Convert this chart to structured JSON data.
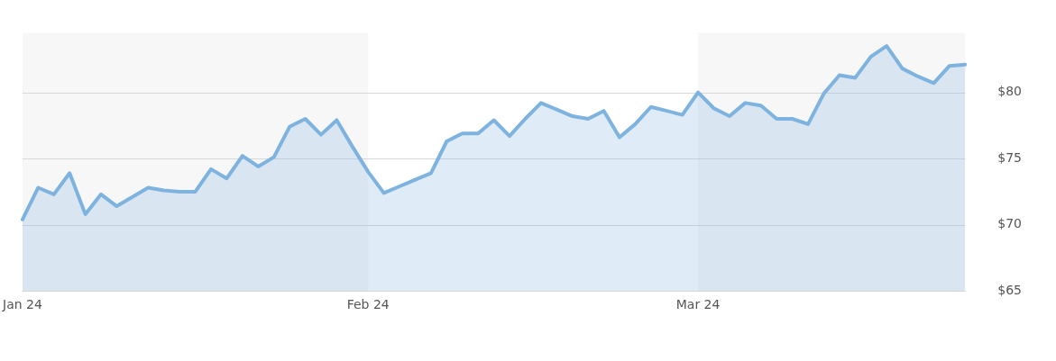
{
  "chart_data": {
    "type": "area",
    "categories": [
      "Jan 24",
      null,
      null,
      null,
      null,
      null,
      null,
      null,
      null,
      null,
      null,
      null,
      null,
      null,
      null,
      null,
      null,
      null,
      null,
      null,
      null,
      null,
      "Feb 24",
      null,
      null,
      null,
      null,
      null,
      null,
      null,
      null,
      null,
      null,
      null,
      null,
      null,
      null,
      null,
      null,
      null,
      null,
      null,
      null,
      "Mar 24",
      null,
      null,
      null,
      null,
      null,
      null,
      null,
      null,
      null,
      null,
      null,
      null,
      null,
      null,
      null,
      null,
      null
    ],
    "series": [
      {
        "color": "#7eb3e0",
        "values": [
          70.4,
          72.8,
          72.3,
          73.9,
          70.8,
          72.3,
          71.4,
          72.1,
          72.8,
          72.6,
          72.5,
          72.5,
          74.2,
          73.5,
          75.2,
          74.4,
          75.1,
          77.4,
          78.0,
          76.8,
          77.9,
          75.9,
          74.0,
          72.4,
          72.9,
          73.4,
          73.9,
          76.3,
          76.9,
          76.9,
          77.9,
          76.7,
          78.0,
          79.2,
          78.7,
          78.2,
          78.0,
          78.6,
          76.6,
          77.6,
          78.9,
          78.6,
          78.3,
          80.0,
          78.8,
          78.2,
          79.2,
          79.0,
          78.0,
          78.0,
          77.6,
          79.9,
          81.3,
          81.1,
          82.7,
          83.5,
          81.8,
          81.2,
          80.7,
          82.0,
          82.1
        ]
      }
    ],
    "ylim": [
      65,
      84.5
    ],
    "yticks": [
      {
        "value": 65,
        "label": "$65"
      },
      {
        "value": 70,
        "label": "$70"
      },
      {
        "value": 75,
        "label": "$75"
      },
      {
        "value": 80,
        "label": "$80"
      }
    ],
    "bands": [
      {
        "axis": "x",
        "from": "Feb 24",
        "to": "Mar 24",
        "color": "#ffffff"
      }
    ],
    "grid": "y",
    "marker": "none",
    "line_style": "solid"
  }
}
